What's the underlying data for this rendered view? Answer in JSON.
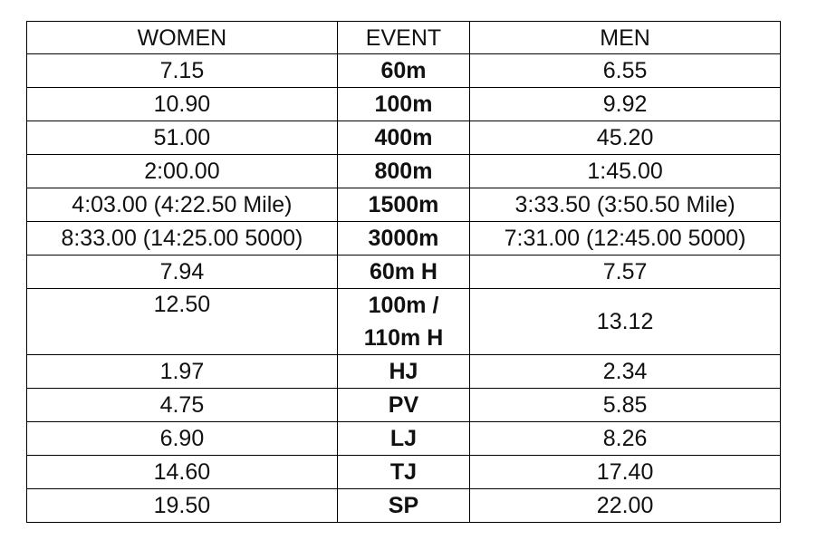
{
  "table": {
    "header": [
      "WOMEN",
      "EVENT",
      "MEN"
    ],
    "rows": [
      [
        "7.15",
        "60m",
        "6.55"
      ],
      [
        "10.90",
        "100m",
        "9.92"
      ],
      [
        "51.00",
        "400m",
        "45.20"
      ],
      [
        "2:00.00",
        "800m",
        "1:45.00"
      ],
      [
        "4:03.00 (4:22.50 Mile)",
        "1500m",
        "3:33.50 (3:50.50 Mile)"
      ],
      [
        "8:33.00 (14:25.00 5000)",
        "3000m",
        "7:31.00 (12:45.00 5000)"
      ],
      [
        "7.94",
        "60m H",
        "7.57"
      ],
      [
        "12.50",
        "100m / 110m H",
        "13.12"
      ],
      [
        "1.97",
        "HJ",
        "2.34"
      ],
      [
        "4.75",
        "PV",
        "5.85"
      ],
      [
        "6.90",
        "LJ",
        "8.26"
      ],
      [
        "14.60",
        "TJ",
        "17.40"
      ],
      [
        "19.50",
        "SP",
        "22.00"
      ]
    ]
  }
}
